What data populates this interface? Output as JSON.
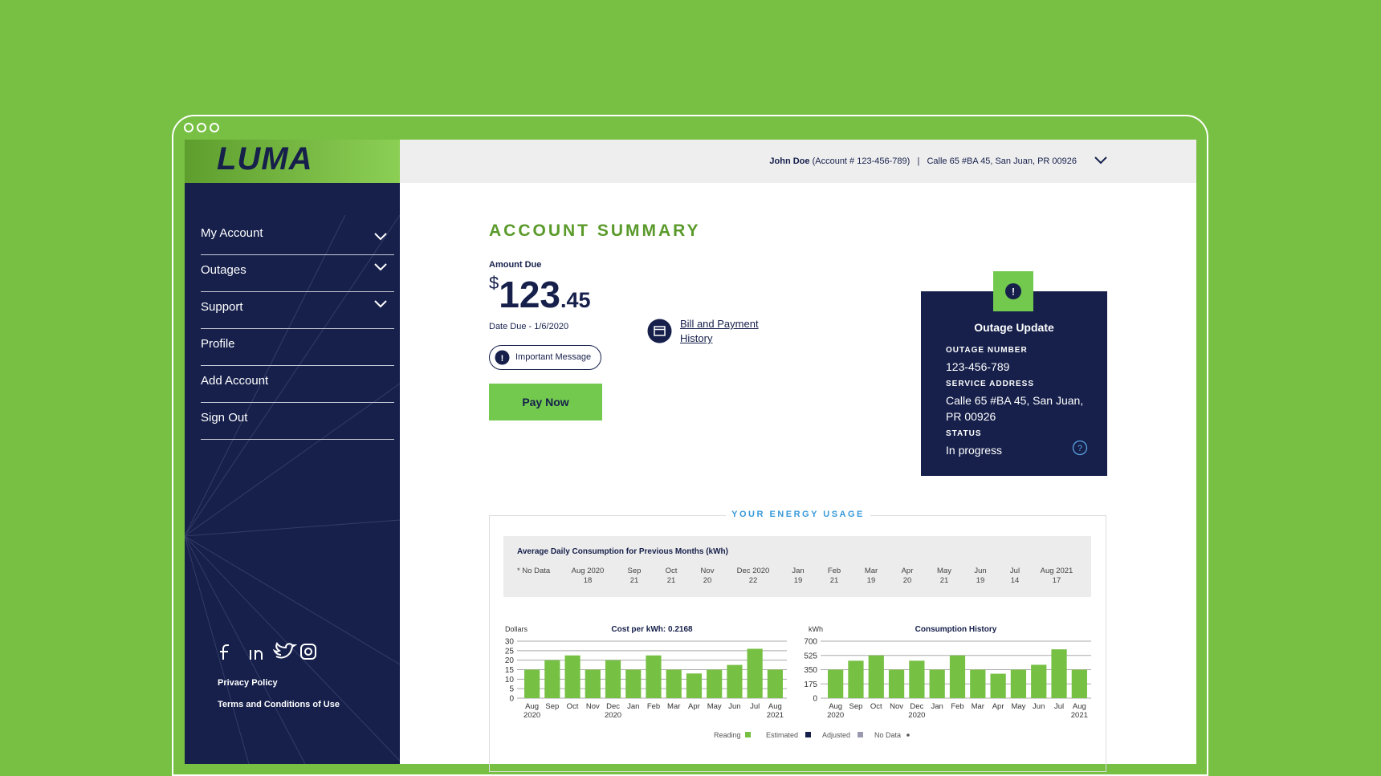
{
  "header": {
    "logo": "LUMA",
    "user_name": "John Doe",
    "account": "(Account # 123-456-789)",
    "separator": "|",
    "address": "Calle 65 #BA 45, San Juan, PR 00926"
  },
  "sidebar": {
    "menu": [
      "My Account",
      "Outages",
      "Support",
      "Profile",
      "Add Account",
      "Sign Out"
    ],
    "links": [
      "Privacy Policy",
      "Terms and Conditions of Use"
    ]
  },
  "summary": {
    "title": "ACCOUNT SUMMARY",
    "amount_due_label": "Amount Due",
    "currency": "$",
    "amount_whole": "123",
    "amount_cents": ".45",
    "date_due": "Date Due - 1/6/2020",
    "important_message": "Important Message",
    "pay_now": "Pay Now",
    "bill_history": "Bill and Payment History"
  },
  "outage": {
    "title": "Outage Update",
    "fields": [
      {
        "label": "OUTAGE NUMBER",
        "value": "123-456-789"
      },
      {
        "label": "SERVICE ADDRESS",
        "value": "Calle 65 #BA 45, San Juan, PR 00926"
      },
      {
        "label": "STATUS",
        "value": "In progress"
      }
    ]
  },
  "energy": {
    "title": "YOUR ENERGY USAGE",
    "average": {
      "title": "Average Daily Consumption for Previous Months (kWh)",
      "no_data": "* No Data",
      "months": [
        {
          "month": "Aug 2020",
          "value": 18
        },
        {
          "month": "Sep",
          "value": 21
        },
        {
          "month": "Oct",
          "value": 21
        },
        {
          "month": "Nov",
          "value": 20
        },
        {
          "month": "Dec 2020",
          "value": 22
        },
        {
          "month": "Jan",
          "value": 19
        },
        {
          "month": "Feb",
          "value": 21
        },
        {
          "month": "Mar",
          "value": 19
        },
        {
          "month": "Apr",
          "value": 20
        },
        {
          "month": "May",
          "value": 21
        },
        {
          "month": "Jun",
          "value": 19
        },
        {
          "month": "Jul",
          "value": 14
        },
        {
          "month": "Aug 2021",
          "value": 17
        }
      ]
    },
    "charts": [
      {
        "type": "bar",
        "title": "Cost per kWh: 0.2168",
        "y_label": "Dollars",
        "color": "#76c043",
        "grid": true,
        "categories": [
          "Aug 2020",
          "Sep",
          "Oct",
          "Nov",
          "Dec 2020",
          "Jan",
          "Feb",
          "Mar",
          "Apr",
          "May",
          "Jun",
          "Jul",
          "Aug 2021"
        ],
        "values": [
          15,
          20,
          22.5,
          15,
          20,
          15,
          22.5,
          15,
          13,
          15,
          17.5,
          26,
          15
        ],
        "ylim": [
          0,
          30
        ],
        "yticks": [
          0,
          5,
          10,
          15,
          20,
          25,
          30
        ]
      },
      {
        "type": "bar",
        "title": "Consumption History",
        "y_label": "kWh",
        "color": "#76c043",
        "grid": true,
        "categories": [
          "Aug 2020",
          "Sep",
          "Oct",
          "Nov",
          "Dec 2020",
          "Jan",
          "Feb",
          "Mar",
          "Apr",
          "May",
          "Jun",
          "Jul",
          "Aug 2021"
        ],
        "values": [
          350,
          460,
          525,
          350,
          460,
          350,
          525,
          350,
          300,
          350,
          410,
          600,
          350
        ],
        "ylim": [
          0,
          700
        ],
        "yticks": [
          0,
          175,
          350,
          525,
          700
        ]
      }
    ],
    "legend": [
      {
        "name": "Reading",
        "color": "#76c043"
      },
      {
        "name": "Estimated",
        "color": "#16204b"
      },
      {
        "name": "Adjusted",
        "color": "#9a9aae"
      },
      {
        "name": "No Data",
        "color": "#555555"
      }
    ]
  }
}
